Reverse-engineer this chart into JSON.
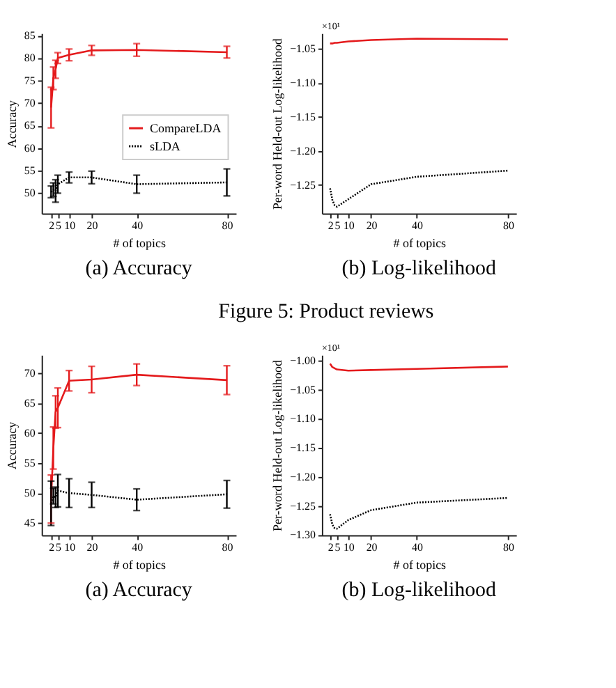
{
  "chart_data": [
    {
      "type": "line",
      "title": "(a) Accuracy",
      "xlabel": "# of topics",
      "ylabel": "Accuracy",
      "annotations": [
        "Figure 5: Product reviews"
      ],
      "x": [
        2,
        3,
        4,
        5,
        10,
        20,
        40,
        80
      ],
      "xlim": [
        -2.2,
        84
      ],
      "xticks": [
        2,
        5,
        10,
        20,
        40,
        80
      ],
      "ylim": [
        45.5,
        85.5
      ],
      "yticks": [
        50,
        55,
        60,
        65,
        70,
        75,
        80,
        85
      ],
      "legend": "right",
      "series": [
        {
          "name": "CompareLDA",
          "color": "#e41a1c",
          "line_style": "solid",
          "values": [
            69,
            75.5,
            77.5,
            80,
            80.7,
            81.7,
            81.8,
            81.3
          ],
          "errors": [
            4.5,
            2.5,
            2,
            1.2,
            1.3,
            1.1,
            1.4,
            1.3
          ]
        },
        {
          "name": "sLDA",
          "color": "#000000",
          "line_style": "dotted",
          "values": [
            50.3,
            50.8,
            50.5,
            52,
            53.5,
            53.5,
            52,
            52.4
          ],
          "errors": [
            1.3,
            1.5,
            2.5,
            2,
            1.2,
            1.4,
            2,
            3
          ]
        }
      ]
    },
    {
      "type": "line",
      "title": "(b) Log-likelihood",
      "xlabel": "# of topics",
      "ylabel": "Per-word Held-out Log-likelihood",
      "annotations": [
        "×10¹"
      ],
      "x": [
        2,
        3,
        4,
        5,
        10,
        20,
        40,
        80
      ],
      "xlim": [
        -1.6,
        83.6
      ],
      "xticks": [
        2,
        5,
        10,
        20,
        40,
        80
      ],
      "ylim": [
        -1.292,
        -1.027
      ],
      "yticks": [
        {
          "value": -1.25,
          "label": "−1.25"
        },
        {
          "value": -1.2,
          "label": "−1.20"
        },
        {
          "value": -1.15,
          "label": "−1.15"
        },
        {
          "value": -1.1,
          "label": "−1.10"
        },
        {
          "value": -1.05,
          "label": "−1.05"
        }
      ],
      "legend": "bottom right",
      "series": [
        {
          "name": "CompareLDA",
          "color": "#e41a1c",
          "line_style": "solid",
          "values": [
            -1.042,
            -1.042,
            -1.041,
            -1.041,
            -1.039,
            -1.037,
            -1.035,
            -1.036
          ]
        },
        {
          "name": "sLDA",
          "color": "#000000",
          "line_style": "dotted",
          "values": [
            -1.255,
            -1.272,
            -1.28,
            -1.282,
            -1.271,
            -1.249,
            -1.238,
            -1.229
          ]
        }
      ]
    },
    {
      "type": "line",
      "title": "(a) Accuracy",
      "xlabel": "# of topics",
      "ylabel": "Accuracy",
      "x": [
        2,
        3,
        4,
        5,
        10,
        20,
        40,
        80
      ],
      "xlim": [
        -2.2,
        84
      ],
      "xticks": [
        2,
        5,
        10,
        20,
        40,
        80
      ],
      "ylim": [
        43,
        73
      ],
      "yticks": [
        45,
        50,
        55,
        60,
        65,
        70
      ],
      "legend": "right",
      "series": [
        {
          "name": "CompareLDA",
          "color": "#e41a1c",
          "line_style": "solid",
          "values": [
            49,
            57.5,
            63.5,
            64.2,
            68.7,
            68.9,
            69.7,
            68.8
          ],
          "errors": [
            4,
            3.5,
            2.7,
            3.3,
            1.7,
            2.2,
            1.8,
            2.4
          ]
        },
        {
          "name": "sLDA",
          "color": "#000000",
          "line_style": "dotted",
          "values": [
            48.3,
            49.5,
            49.3,
            50.4,
            50,
            49.7,
            48.9,
            49.8
          ],
          "errors": [
            3.7,
            1.3,
            1.7,
            2.7,
            2.4,
            2.1,
            1.8,
            2.3
          ]
        }
      ]
    },
    {
      "type": "line",
      "title": "(b) Log-likelihood",
      "xlabel": "# of topics",
      "ylabel": "Per-word Held-out Log-likelihood",
      "annotations": [
        "×10¹"
      ],
      "x": [
        2,
        3,
        4,
        5,
        10,
        20,
        40,
        80
      ],
      "xlim": [
        -1.6,
        83.6
      ],
      "xticks": [
        2,
        5,
        10,
        20,
        40,
        80
      ],
      "ylim": [
        -1.3,
        -0.99
      ],
      "yticks": [
        {
          "value": -1.3,
          "label": "−1.30"
        },
        {
          "value": -1.25,
          "label": "−1.25"
        },
        {
          "value": -1.2,
          "label": "−1.20"
        },
        {
          "value": -1.15,
          "label": "−1.15"
        },
        {
          "value": -1.1,
          "label": "−1.10"
        },
        {
          "value": -1.05,
          "label": "−1.05"
        },
        {
          "value": -1.0,
          "label": "−1.00"
        }
      ],
      "legend": "right",
      "series": [
        {
          "name": "CompareLDA",
          "color": "#e41a1c",
          "line_style": "solid",
          "values": [
            -1.005,
            -1.011,
            -1.013,
            -1.015,
            -1.017,
            -1.016,
            -1.014,
            -1.01
          ]
        },
        {
          "name": "sLDA",
          "color": "#000000",
          "line_style": "dotted",
          "values": [
            -1.264,
            -1.282,
            -1.288,
            -1.289,
            -1.274,
            -1.257,
            -1.244,
            -1.236
          ]
        }
      ]
    }
  ]
}
